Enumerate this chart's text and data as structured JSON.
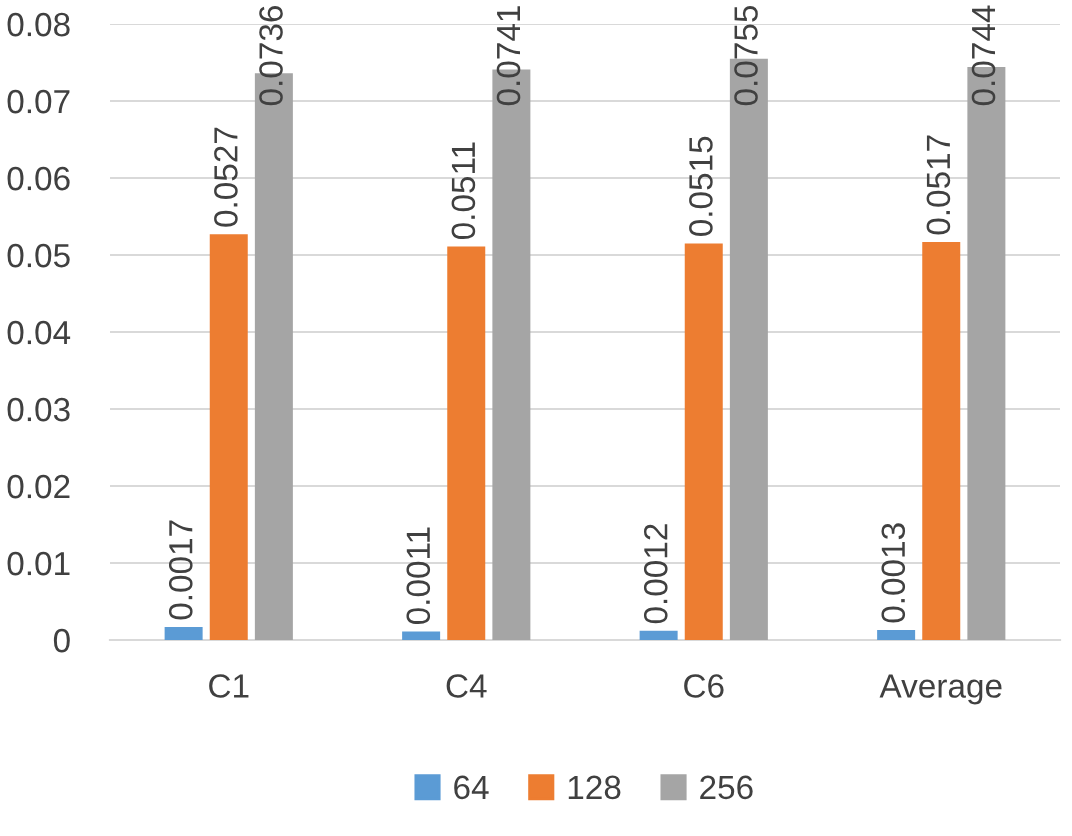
{
  "chart_data": {
    "type": "bar",
    "categories": [
      "C1",
      "C4",
      "C6",
      "Average"
    ],
    "series": [
      {
        "name": "64",
        "color": "#5b9bd5",
        "values": [
          0.0017,
          0.0011,
          0.0012,
          0.0013
        ]
      },
      {
        "name": "128",
        "color": "#ed7d31",
        "values": [
          0.0527,
          0.0511,
          0.0515,
          0.0517
        ]
      },
      {
        "name": "256",
        "color": "#a5a5a5",
        "values": [
          0.0736,
          0.0741,
          0.0755,
          0.0744
        ]
      }
    ],
    "ylim": [
      0,
      0.08
    ],
    "yticks": [
      {
        "value": 0,
        "label": "0"
      },
      0.01,
      0.02,
      0.03,
      0.04,
      0.05,
      0.06,
      0.07,
      0.08
    ],
    "grid": "y",
    "legend": "bottom",
    "data_labels": true
  }
}
